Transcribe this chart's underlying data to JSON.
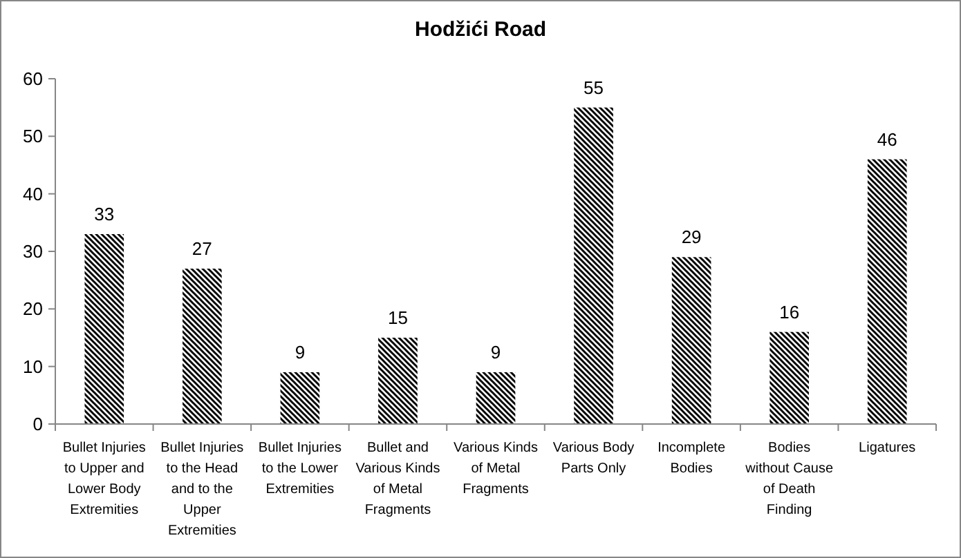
{
  "chart_data": {
    "type": "bar",
    "title": "Hodžići Road",
    "categories": [
      "Bullet Injuries to Upper and Lower Body Extremities",
      "Bullet Injuries to the Head and to the Upper Extremities",
      "Bullet Injuries to the Lower Extremities",
      "Bullet and Various Kinds of Metal Fragments",
      "Various Kinds of Metal Fragments",
      "Various Body Parts Only",
      "Incomplete Bodies",
      "Bodies without Cause of Death Finding",
      "Ligatures"
    ],
    "values": [
      33,
      27,
      9,
      15,
      9,
      55,
      29,
      16,
      46
    ],
    "color": "#000000",
    "ylim": [
      0,
      60
    ],
    "yticks": [
      0,
      10,
      20,
      30,
      40,
      50,
      60
    ],
    "data_labels": true
  }
}
